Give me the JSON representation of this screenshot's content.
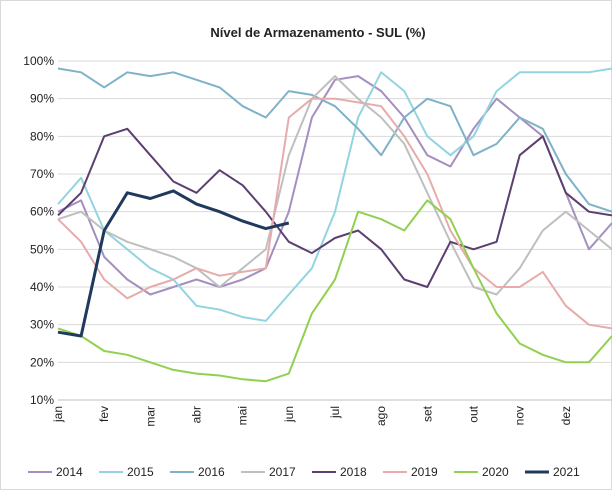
{
  "chart_data": {
    "type": "line",
    "title": "Nível de Armazenamento - SUL (%)",
    "categories": [
      "jan",
      null,
      "fev",
      null,
      "mar",
      null,
      "abr",
      null,
      "mai",
      null,
      "jun",
      null,
      "jul",
      null,
      "ago",
      null,
      "set",
      null,
      "out",
      null,
      "nov",
      null,
      "dez",
      null,
      null
    ],
    "ylim": [
      10,
      100
    ],
    "yticks": [
      {
        "value": 10,
        "label": "10%"
      },
      {
        "value": 20,
        "label": "20%"
      },
      {
        "value": 30,
        "label": "30%"
      },
      {
        "value": 40,
        "label": "40%"
      },
      {
        "value": 50,
        "label": "50%"
      },
      {
        "value": 60,
        "label": "60%"
      },
      {
        "value": 70,
        "label": "70%"
      },
      {
        "value": 80,
        "label": "80%"
      },
      {
        "value": 90,
        "label": "90%"
      },
      {
        "value": 100,
        "label": "100%"
      }
    ],
    "grid": true,
    "legend": "bottom",
    "series": [
      {
        "name": "2014",
        "color": "#a48fbf",
        "width": 2,
        "values": [
          60,
          63,
          48,
          42,
          38,
          40,
          42,
          40,
          42,
          45,
          60,
          85,
          95,
          96,
          92,
          85,
          75,
          72,
          82,
          90,
          85,
          80,
          65,
          50,
          57
        ]
      },
      {
        "name": "2015",
        "color": "#92d4e2",
        "width": 2,
        "values": [
          62,
          69,
          55,
          50,
          45,
          42,
          35,
          34,
          32,
          31,
          38,
          45,
          60,
          85,
          97,
          92,
          80,
          75,
          80,
          92,
          97,
          97,
          97,
          97,
          98
        ]
      },
      {
        "name": "2016",
        "color": "#7eb2c8",
        "width": 2,
        "values": [
          98,
          97,
          93,
          97,
          96,
          97,
          95,
          93,
          88,
          85,
          92,
          91,
          88,
          82,
          75,
          85,
          90,
          88,
          75,
          78,
          85,
          82,
          70,
          62,
          60
        ]
      },
      {
        "name": "2017",
        "color": "#bfbfbf",
        "width": 2,
        "values": [
          58,
          60,
          55,
          52,
          50,
          48,
          45,
          40,
          45,
          50,
          75,
          90,
          96,
          90,
          85,
          78,
          65,
          52,
          40,
          38,
          45,
          55,
          60,
          55,
          50
        ]
      },
      {
        "name": "2018",
        "color": "#5b3f70",
        "width": 2,
        "values": [
          59,
          65,
          80,
          82,
          75,
          68,
          65,
          71,
          67,
          60,
          52,
          49,
          53,
          55,
          50,
          42,
          40,
          52,
          50,
          52,
          75,
          80,
          65,
          60,
          59
        ]
      },
      {
        "name": "2019",
        "color": "#e8abab",
        "width": 2,
        "values": [
          58,
          52,
          42,
          37,
          40,
          42,
          45,
          43,
          44,
          45,
          85,
          90,
          90,
          89,
          88,
          80,
          70,
          55,
          45,
          40,
          40,
          44,
          35,
          30,
          29
        ]
      },
      {
        "name": "2020",
        "color": "#92d050",
        "width": 2,
        "values": [
          29,
          27,
          23,
          22,
          20,
          18,
          17,
          16.5,
          15.5,
          15,
          17,
          33,
          42,
          60,
          58,
          55,
          63,
          58,
          45,
          33,
          25,
          22,
          20,
          20,
          27
        ]
      },
      {
        "name": "2021",
        "color": "#1f3a5c",
        "width": 3,
        "values": [
          28,
          27,
          55,
          65,
          63.5,
          65.5,
          62,
          60,
          57.5,
          55.5,
          57,
          null,
          null,
          null,
          null,
          null,
          null,
          null,
          null,
          null,
          null,
          null,
          null,
          null,
          null
        ]
      }
    ]
  }
}
